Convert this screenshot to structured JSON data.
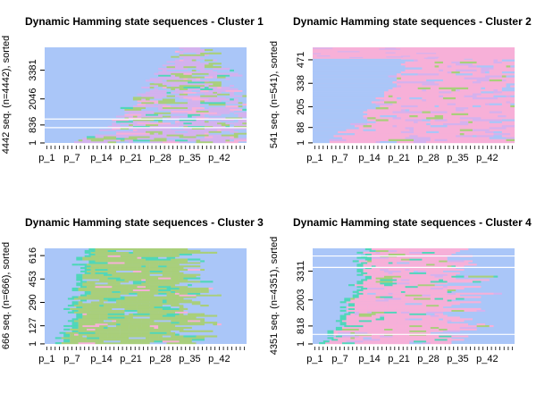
{
  "chart_data": [
    {
      "type": "heatmap",
      "title": "Dynamic Hamming state sequences - Cluster 1",
      "ylabel": "4442 seq. (n=4442), sorted",
      "y_ticks": [
        "1",
        "836",
        "2046",
        "3381"
      ],
      "x_ticks": [
        "p_1",
        "p_7",
        "p_14",
        "p_21",
        "p_28",
        "p_35",
        "p_42"
      ],
      "n_sequences": 4442,
      "n_positions": 48,
      "pattern": "blue-dominant with lilac, green and pink transitions in middle positions"
    },
    {
      "type": "heatmap",
      "title": "Dynamic Hamming state sequences - Cluster 2",
      "ylabel": "541 seq. (n=541), sorted",
      "y_ticks": [
        "1",
        "88",
        "205",
        "338",
        "471"
      ],
      "x_ticks": [
        "p_1",
        "p_7",
        "p_14",
        "p_21",
        "p_28",
        "p_35",
        "p_42"
      ],
      "n_sequences": 541,
      "n_positions": 48,
      "pattern": "blue at start turning to pink for most of the sequence"
    },
    {
      "type": "heatmap",
      "title": "Dynamic Hamming state sequences - Cluster 3",
      "ylabel": "666 seq. (n=666), sorted",
      "y_ticks": [
        "1",
        "127",
        "290",
        "453",
        "616"
      ],
      "x_ticks": [
        "p_1",
        "p_7",
        "p_14",
        "p_21",
        "p_28",
        "p_35",
        "p_42"
      ],
      "n_sequences": 666,
      "n_positions": 48,
      "pattern": "blue at edges with olive-green block in middle positions"
    },
    {
      "type": "heatmap",
      "title": "Dynamic Hamming state sequences - Cluster 4",
      "ylabel": "4351 seq. (n=4351), sorted",
      "y_ticks": [
        "1",
        "818",
        "2003",
        "3311"
      ],
      "x_ticks": [
        "p_1",
        "p_7",
        "p_14",
        "p_21",
        "p_28",
        "p_35",
        "p_42"
      ],
      "n_sequences": 4351,
      "n_positions": 48,
      "pattern": "blue at edges with pink block in middle positions"
    }
  ],
  "colors": {
    "blue": "#aac6f8",
    "pink": "#f7b0d8",
    "lilac": "#d4b2ee",
    "green": "#a9cf7a",
    "teal": "#4fd7b9",
    "white": "#ffffff"
  }
}
